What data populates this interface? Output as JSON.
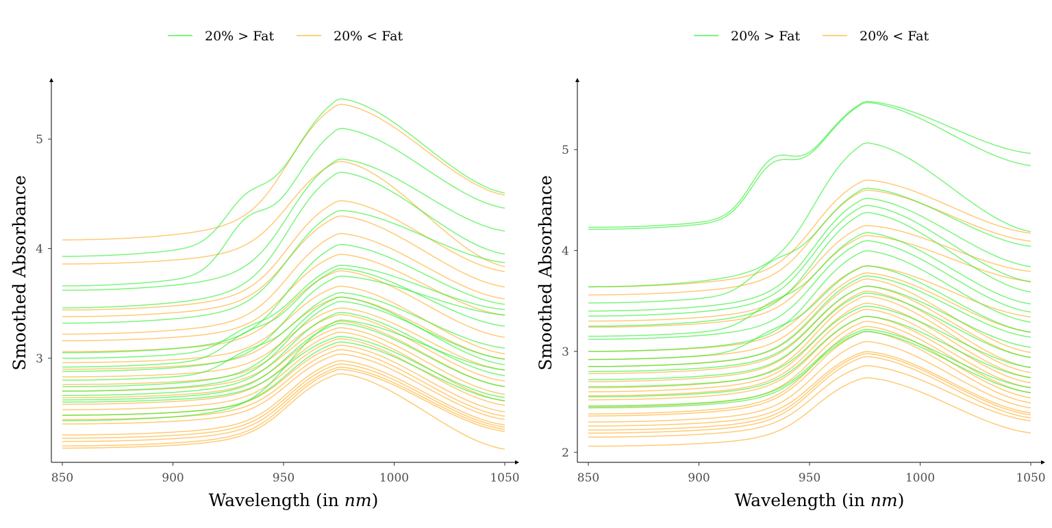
{
  "chart_data": [
    {
      "type": "line",
      "panel": "left",
      "xlabel": "Wavelength (in nm)",
      "xlabel_parts": [
        "Wavelength (in ",
        "nm",
        ")"
      ],
      "ylabel": "Smoothed Absorbance",
      "xlim": [
        850,
        1050
      ],
      "ylim": [
        2.05,
        5.52
      ],
      "xticks": [
        850,
        900,
        950,
        1000,
        1050
      ],
      "yticks": [
        3,
        4,
        5
      ],
      "grid": false,
      "legend_position": "top",
      "legend": [
        {
          "label": "20% > Fat",
          "color": "#33ee33"
        },
        {
          "label": "20% < Fat",
          "color": "#ffb52e"
        }
      ],
      "groups": [
        {
          "name": "20% > Fat",
          "color": "#22ee22",
          "series": [
            {
              "start": 3.93,
              "peak": 5.37,
              "end": 4.52,
              "bump": 0.3
            },
            {
              "start": 3.66,
              "peak": 5.1,
              "end": 4.38,
              "bump": 0.35
            },
            {
              "start": 3.62,
              "peak": 4.82,
              "end": 4.17
            },
            {
              "start": 3.46,
              "peak": 4.7,
              "end": 3.96
            },
            {
              "start": 3.32,
              "peak": 4.35,
              "end": 3.88
            },
            {
              "start": 3.05,
              "peak": 4.04,
              "end": 3.5
            },
            {
              "start": 3.0,
              "peak": 3.85,
              "end": 3.45,
              "bump": 0.12
            },
            {
              "start": 2.92,
              "peak": 3.82,
              "end": 3.3,
              "bump": 0.15
            },
            {
              "start": 2.88,
              "peak": 3.75,
              "end": 3.4
            },
            {
              "start": 2.8,
              "peak": 3.6,
              "end": 3.1,
              "bump": 0.12
            },
            {
              "start": 2.74,
              "peak": 3.56,
              "end": 2.95
            },
            {
              "start": 2.7,
              "peak": 3.52,
              "end": 3.0
            },
            {
              "start": 2.66,
              "peak": 3.42,
              "end": 2.85
            },
            {
              "start": 2.62,
              "peak": 3.32,
              "end": 2.75
            },
            {
              "start": 2.6,
              "peak": 3.2,
              "end": 2.65
            },
            {
              "start": 2.48,
              "peak": 3.15,
              "end": 2.62
            },
            {
              "start": 2.43,
              "peak": 3.35,
              "end": 2.9
            }
          ]
        },
        {
          "name": "20% < Fat",
          "color": "#ffa718",
          "series": [
            {
              "start": 4.08,
              "peak": 5.32,
              "end": 4.5
            },
            {
              "start": 3.86,
              "peak": 4.8,
              "end": 3.85
            },
            {
              "start": 3.44,
              "peak": 4.44,
              "end": 3.8
            },
            {
              "start": 3.38,
              "peak": 4.3,
              "end": 3.66
            },
            {
              "start": 3.22,
              "peak": 4.14,
              "end": 3.55
            },
            {
              "start": 3.16,
              "peak": 3.95,
              "end": 3.4
            },
            {
              "start": 3.06,
              "peak": 3.8,
              "end": 3.2
            },
            {
              "start": 2.96,
              "peak": 3.66,
              "end": 3.05
            },
            {
              "start": 2.9,
              "peak": 3.56,
              "end": 3.0
            },
            {
              "start": 2.83,
              "peak": 3.46,
              "end": 2.9
            },
            {
              "start": 2.76,
              "peak": 3.4,
              "end": 2.8
            },
            {
              "start": 2.7,
              "peak": 3.34,
              "end": 2.75
            },
            {
              "start": 2.64,
              "peak": 3.28,
              "end": 2.68
            },
            {
              "start": 2.58,
              "peak": 3.24,
              "end": 2.62
            },
            {
              "start": 2.53,
              "peak": 3.18,
              "end": 2.58
            },
            {
              "start": 2.48,
              "peak": 3.12,
              "end": 2.52
            },
            {
              "start": 2.44,
              "peak": 3.08,
              "end": 2.48
            },
            {
              "start": 2.4,
              "peak": 3.04,
              "end": 2.45
            },
            {
              "start": 2.3,
              "peak": 2.98,
              "end": 2.4
            },
            {
              "start": 2.27,
              "peak": 2.95,
              "end": 2.38
            },
            {
              "start": 2.24,
              "peak": 2.92,
              "end": 2.36
            },
            {
              "start": 2.2,
              "peak": 2.9,
              "end": 2.34
            },
            {
              "start": 2.18,
              "peak": 2.86,
              "end": 2.18
            }
          ]
        }
      ]
    },
    {
      "type": "line",
      "panel": "right",
      "xlabel": "Wavelength (in nm)",
      "xlabel_parts": [
        "Wavelength (in ",
        "nm",
        ")"
      ],
      "ylabel": "Smoothed Absorbance",
      "xlim": [
        850,
        1050
      ],
      "ylim": [
        1.9,
        5.67
      ],
      "xticks": [
        850,
        900,
        950,
        1000,
        1050
      ],
      "yticks": [
        2,
        3,
        4,
        5
      ],
      "grid": false,
      "legend_position": "top",
      "legend": [
        {
          "label": "20% > Fat",
          "color": "#33ee33"
        },
        {
          "label": "20% < Fat",
          "color": "#ffb52e"
        }
      ],
      "groups": [
        {
          "name": "20% > Fat",
          "color": "#22ee22",
          "series": [
            {
              "start": 4.23,
              "peak": 5.48,
              "end": 4.97,
              "bump": 0.45
            },
            {
              "start": 4.21,
              "peak": 5.47,
              "end": 4.85,
              "bump": 0.42
            },
            {
              "start": 3.64,
              "peak": 5.07,
              "end": 4.2
            },
            {
              "start": 3.48,
              "peak": 4.62,
              "end": 4.05,
              "bump": 0.2
            },
            {
              "start": 3.4,
              "peak": 4.52,
              "end": 3.85
            },
            {
              "start": 3.35,
              "peak": 4.45,
              "end": 3.7
            },
            {
              "start": 3.25,
              "peak": 4.38,
              "end": 3.6
            },
            {
              "start": 3.15,
              "peak": 4.18,
              "end": 3.48,
              "bump": 0.15
            },
            {
              "start": 3.12,
              "peak": 4.1,
              "end": 3.4
            },
            {
              "start": 3.0,
              "peak": 4.0,
              "end": 3.3
            },
            {
              "start": 2.92,
              "peak": 3.85,
              "end": 3.2,
              "bump": 0.12
            },
            {
              "start": 2.85,
              "peak": 3.75,
              "end": 3.15
            },
            {
              "start": 2.8,
              "peak": 3.65,
              "end": 3.05
            },
            {
              "start": 2.72,
              "peak": 3.58,
              "end": 2.95
            },
            {
              "start": 2.65,
              "peak": 3.45,
              "end": 2.85
            },
            {
              "start": 2.55,
              "peak": 3.35,
              "end": 2.75
            },
            {
              "start": 2.46,
              "peak": 3.22,
              "end": 2.65
            },
            {
              "start": 2.44,
              "peak": 3.2,
              "end": 2.6
            }
          ]
        },
        {
          "name": "20% < Fat",
          "color": "#ffa718",
          "series": [
            {
              "start": 3.64,
              "peak": 4.7,
              "end": 4.18
            },
            {
              "start": 3.56,
              "peak": 4.6,
              "end": 4.1
            },
            {
              "start": 3.3,
              "peak": 4.25,
              "end": 3.8
            },
            {
              "start": 3.24,
              "peak": 4.15,
              "end": 3.7
            },
            {
              "start": 3.0,
              "peak": 3.85,
              "end": 3.35
            },
            {
              "start": 2.92,
              "peak": 3.78,
              "end": 3.2
            },
            {
              "start": 2.85,
              "peak": 3.72,
              "end": 3.0
            },
            {
              "start": 2.78,
              "peak": 3.65,
              "end": 2.95
            },
            {
              "start": 2.7,
              "peak": 3.6,
              "end": 2.85
            },
            {
              "start": 2.64,
              "peak": 3.55,
              "end": 2.8
            },
            {
              "start": 2.6,
              "peak": 3.48,
              "end": 2.75
            },
            {
              "start": 2.56,
              "peak": 3.42,
              "end": 2.7
            },
            {
              "start": 2.52,
              "peak": 3.35,
              "end": 2.65
            },
            {
              "start": 2.45,
              "peak": 3.3,
              "end": 2.6
            },
            {
              "start": 2.38,
              "peak": 3.25,
              "end": 2.55
            },
            {
              "start": 2.36,
              "peak": 3.2,
              "end": 2.5
            },
            {
              "start": 2.3,
              "peak": 3.1,
              "end": 2.45
            },
            {
              "start": 2.26,
              "peak": 3.0,
              "end": 2.4
            },
            {
              "start": 2.22,
              "peak": 2.98,
              "end": 2.38
            },
            {
              "start": 2.19,
              "peak": 2.95,
              "end": 2.35
            },
            {
              "start": 2.15,
              "peak": 2.86,
              "end": 2.32
            },
            {
              "start": 2.06,
              "peak": 2.74,
              "end": 2.2
            }
          ]
        }
      ]
    }
  ]
}
